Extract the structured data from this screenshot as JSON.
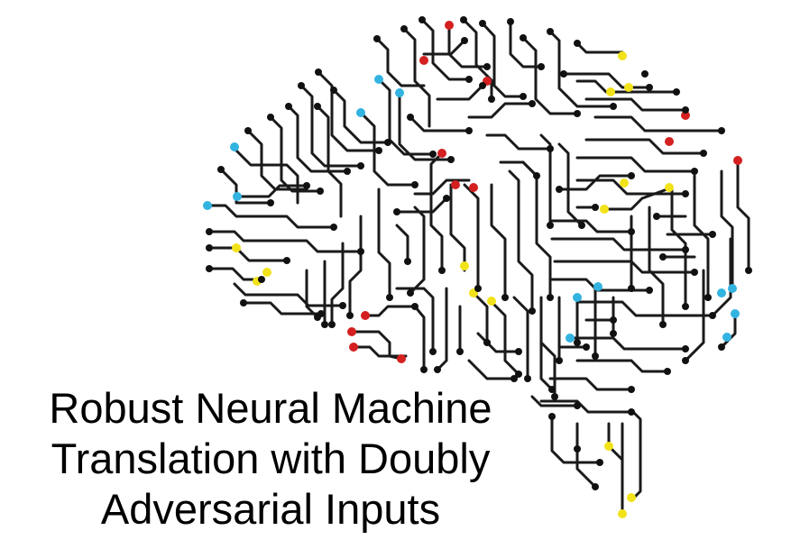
{
  "title": {
    "lines": [
      "Robust Neural Machine",
      "Translation with Doubly",
      "Adversarial Inputs"
    ]
  },
  "illustration": {
    "icon": "circuit-brain-icon",
    "colors": {
      "trace": "#1a1a1a",
      "node": "#111111",
      "accent_red": "#d42020",
      "accent_blue": "#33b3e0",
      "accent_yellow": "#f2e21a"
    }
  }
}
